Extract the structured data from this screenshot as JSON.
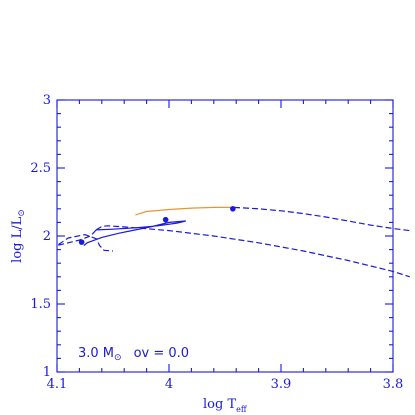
{
  "colors": {
    "axes": "#1a1adb",
    "track_main": "#1a1adb",
    "track_segment": "#e8962e",
    "markers": "#1a1adb"
  },
  "chart_data": {
    "type": "line",
    "xlabel": {
      "main": "log T",
      "sub": "eff"
    },
    "ylabel": {
      "main": "log L/L",
      "sym": "⊙"
    },
    "xlim": [
      4.1,
      3.8
    ],
    "ylim": [
      1.0,
      3.0
    ],
    "xticks": [
      "4.1",
      "4",
      "3.9",
      "3.8"
    ],
    "yticks": [
      "1",
      "1.5",
      "2",
      "2.5",
      "3"
    ],
    "annotation": {
      "mass_prefix": "3.0 M",
      "mass_sym": "⊙",
      "overshoot": "ov = 0.0"
    },
    "series": [
      {
        "style": "solid",
        "color_key": "track_main",
        "points": [
          [
            4.076,
            1.93
          ],
          [
            4.073,
            1.95
          ],
          [
            4.06,
            1.99
          ],
          [
            4.045,
            2.02
          ],
          [
            4.03,
            2.045
          ],
          [
            4.015,
            2.07
          ],
          [
            4.0,
            2.1
          ],
          [
            3.985,
            2.11
          ],
          [
            3.993,
            2.095
          ],
          [
            4.01,
            2.075
          ],
          [
            4.03,
            2.06
          ],
          [
            4.05,
            2.05
          ],
          [
            4.065,
            2.045
          ]
        ]
      },
      {
        "style": "dashed",
        "color_key": "track_main",
        "points": [
          [
            4.065,
            2.045
          ],
          [
            4.06,
            2.07
          ],
          [
            4.055,
            2.075
          ],
          [
            4.045,
            2.07
          ],
          [
            4.03,
            2.06
          ],
          [
            4.0,
            2.04
          ],
          [
            3.96,
            2.0
          ],
          [
            3.92,
            1.95
          ],
          [
            3.88,
            1.89
          ],
          [
            3.84,
            1.82
          ],
          [
            3.8,
            1.74
          ],
          [
            3.785,
            1.7
          ]
        ]
      },
      {
        "style": "dashed",
        "color_key": "track_main",
        "points": [
          [
            4.065,
            2.045
          ],
          [
            4.07,
            2.0
          ],
          [
            4.08,
            1.97
          ],
          [
            4.09,
            1.95
          ],
          [
            4.1,
            1.93
          ],
          [
            4.09,
            1.985
          ],
          [
            4.075,
            2.01
          ],
          [
            4.065,
            1.98
          ],
          [
            4.062,
            1.93
          ],
          [
            4.058,
            1.895
          ],
          [
            4.05,
            1.89
          ]
        ]
      },
      {
        "style": "solid",
        "color_key": "track_segment",
        "points": [
          [
            4.03,
            2.155
          ],
          [
            4.02,
            2.18
          ],
          [
            4.0,
            2.195
          ],
          [
            3.98,
            2.205
          ],
          [
            3.96,
            2.21
          ],
          [
            3.942,
            2.21
          ]
        ]
      },
      {
        "style": "dashed",
        "color_key": "track_main",
        "points": [
          [
            3.942,
            2.21
          ],
          [
            3.92,
            2.2
          ],
          [
            3.9,
            2.185
          ],
          [
            3.88,
            2.165
          ],
          [
            3.86,
            2.14
          ],
          [
            3.84,
            2.11
          ],
          [
            3.82,
            2.08
          ],
          [
            3.8,
            2.055
          ],
          [
            3.785,
            2.04
          ]
        ]
      }
    ],
    "markers": [
      [
        4.078,
        1.955
      ],
      [
        4.003,
        2.12
      ],
      [
        3.943,
        2.2
      ]
    ]
  }
}
